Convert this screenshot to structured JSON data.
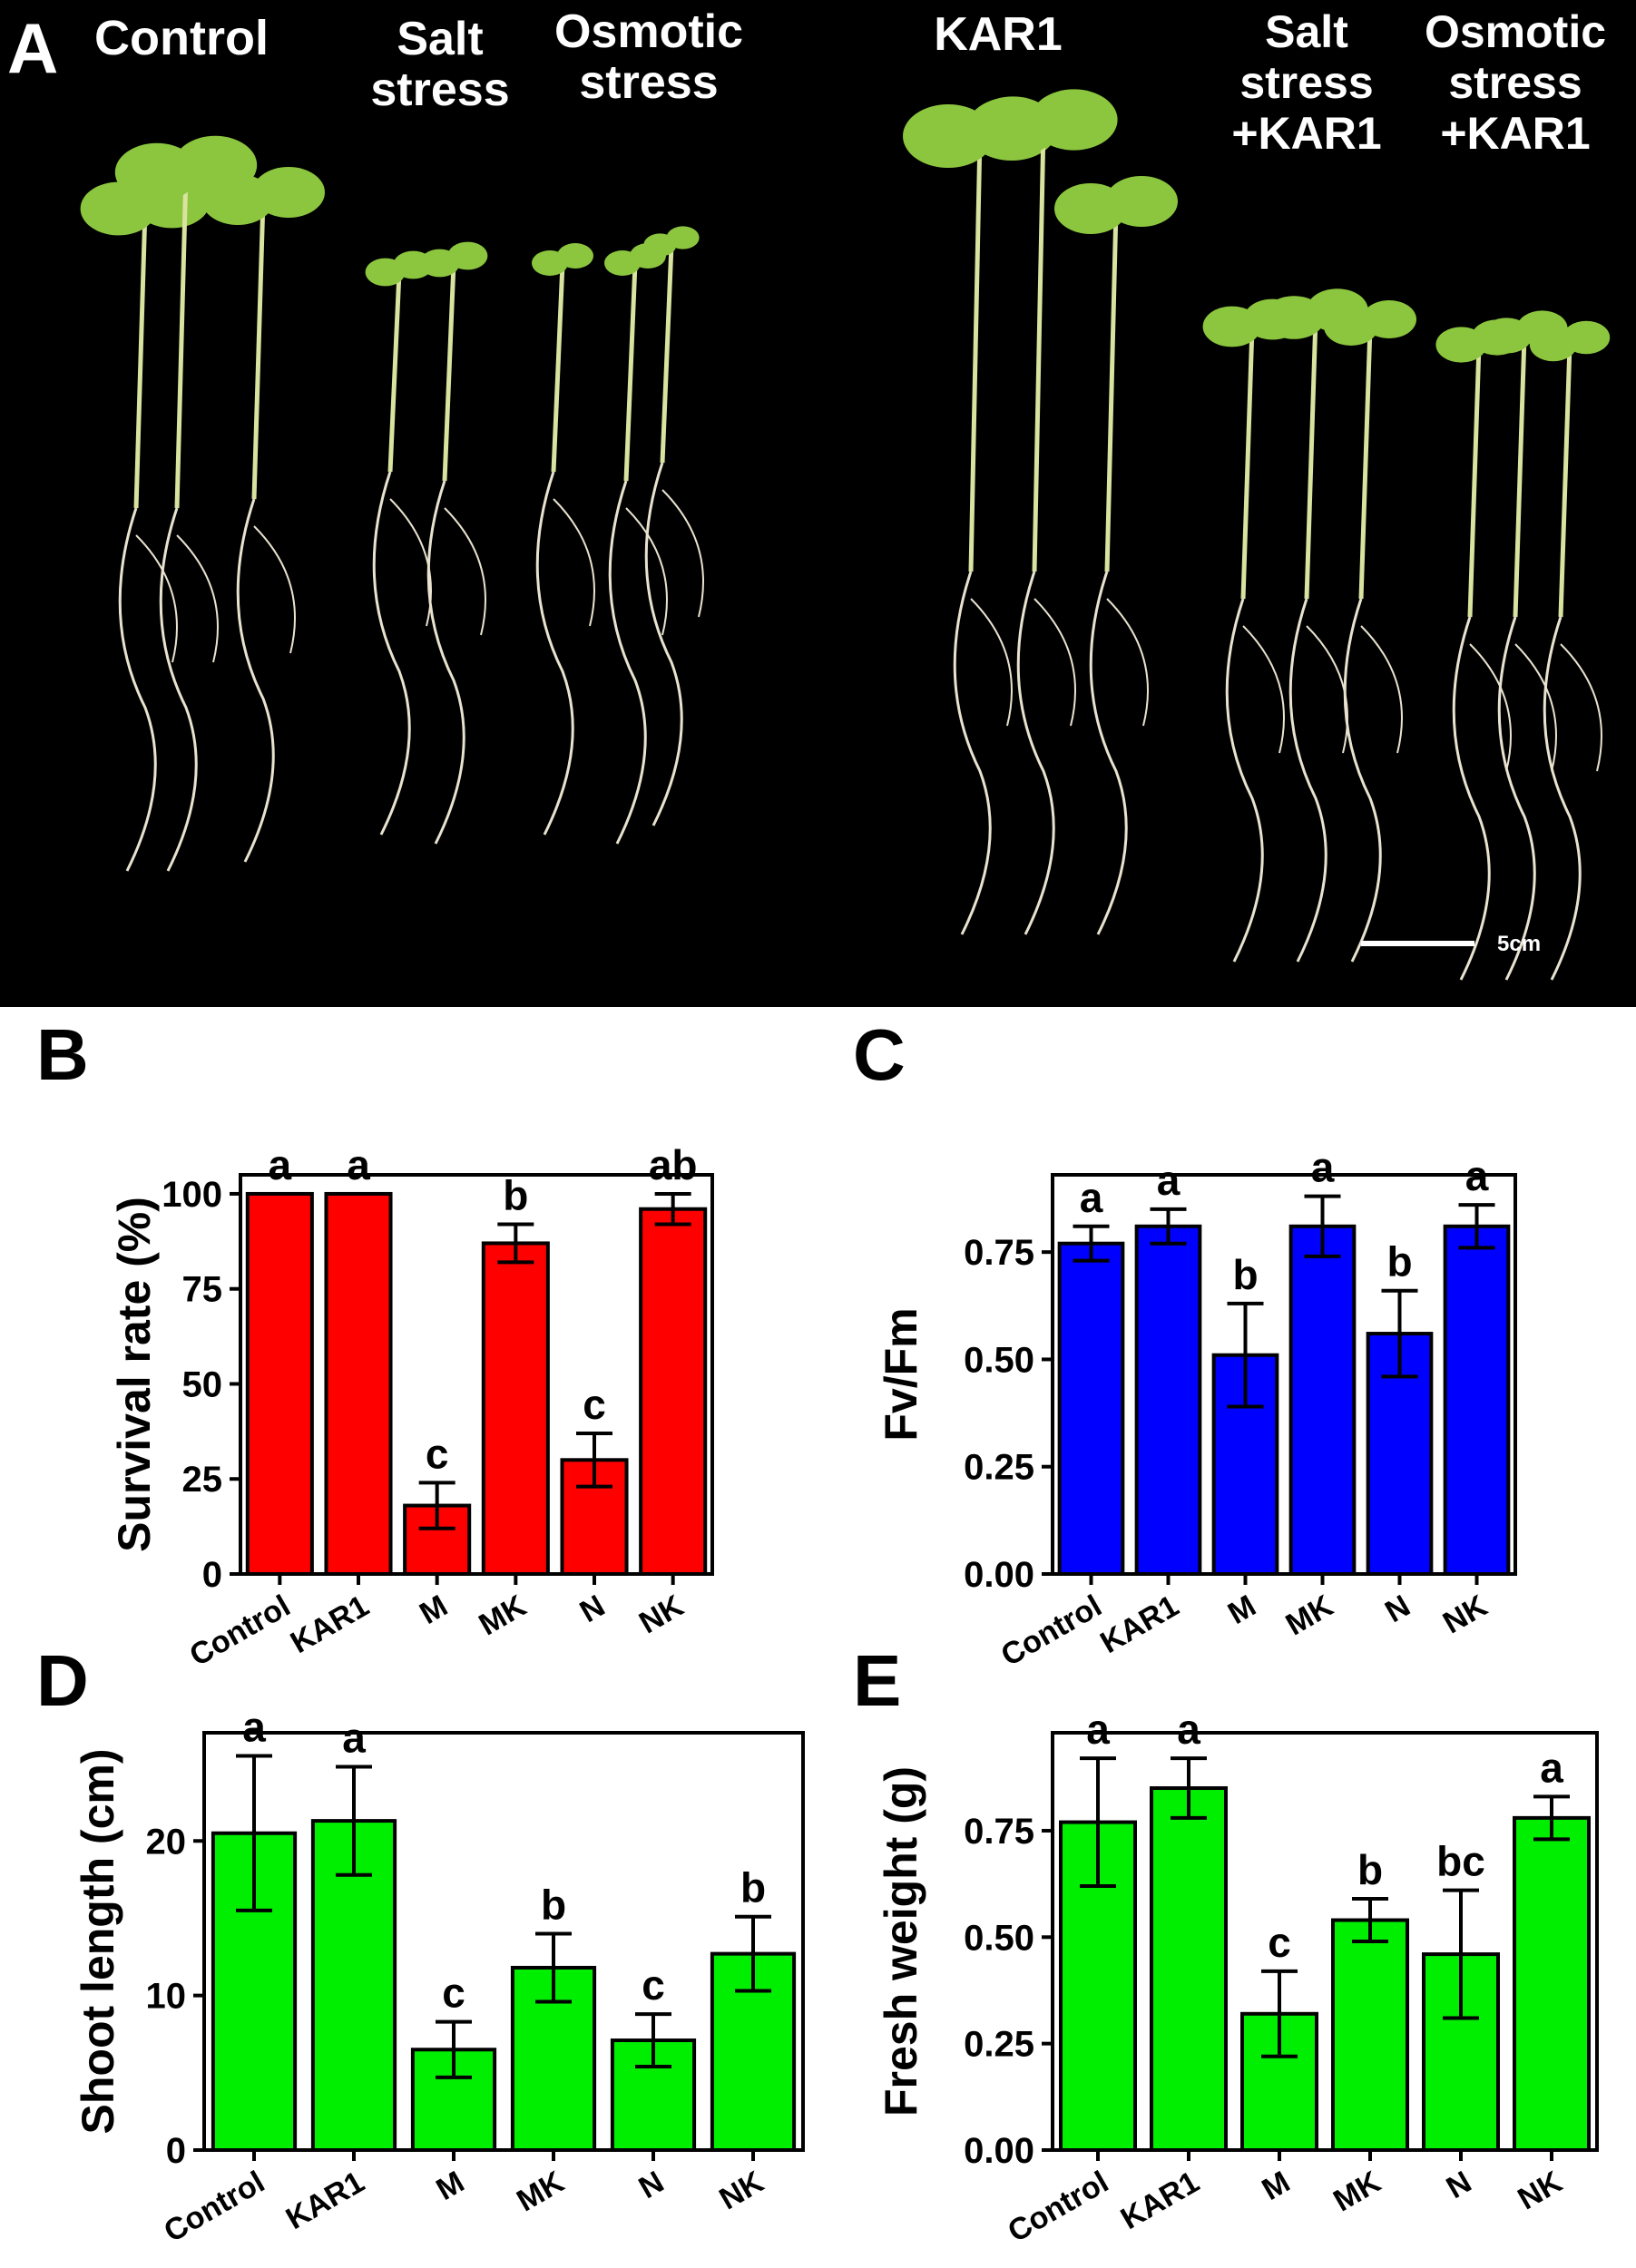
{
  "photo_panel": {
    "label": "A",
    "groups": [
      "Control",
      "Salt stress",
      "Osmotic stress",
      "KAR1",
      "Salt stress +KAR1",
      "Osmotic stress +KAR1"
    ],
    "scale_bar_label": "5cm",
    "colors": {
      "background": "#000000",
      "leaf": "#8cc63f",
      "stem": "#d9e3a0",
      "root": "#e8e2cf"
    }
  },
  "chart_data": [
    {
      "panel": "B",
      "type": "bar",
      "categories": [
        "Control",
        "KAR1",
        "M",
        "MK",
        "N",
        "NK"
      ],
      "values": [
        100,
        100,
        18,
        87,
        30,
        96
      ],
      "errors": [
        0,
        0,
        6,
        5,
        7,
        4
      ],
      "significance": [
        "a",
        "a",
        "c",
        "b",
        "c",
        "ab"
      ],
      "ylabel": "Survival rate (%)",
      "ylim": [
        0,
        105
      ],
      "yticks": [
        0,
        25,
        50,
        75,
        100
      ],
      "ytick_labels": [
        "0",
        "25",
        "50",
        "75",
        "100"
      ],
      "color": "#ff0000"
    },
    {
      "panel": "C",
      "type": "bar",
      "categories": [
        "Control",
        "KAR1",
        "M",
        "MK",
        "N",
        "NK"
      ],
      "values": [
        0.77,
        0.81,
        0.51,
        0.81,
        0.56,
        0.81
      ],
      "errors": [
        0.04,
        0.04,
        0.12,
        0.07,
        0.1,
        0.05
      ],
      "significance": [
        "a",
        "a",
        "b",
        "a",
        "b",
        "a"
      ],
      "ylabel": "Fv/Fm",
      "ylim": [
        0,
        0.93
      ],
      "yticks": [
        0,
        0.25,
        0.5,
        0.75
      ],
      "ytick_labels": [
        "0.00",
        "0.25",
        "0.50",
        "0.75"
      ],
      "color": "#0000ff"
    },
    {
      "panel": "D",
      "type": "bar",
      "categories": [
        "Control",
        "KAR1",
        "M",
        "MK",
        "N",
        "NK"
      ],
      "values": [
        20.5,
        21.3,
        6.5,
        11.8,
        7.1,
        12.7
      ],
      "errors": [
        5,
        3.5,
        1.8,
        2.2,
        1.7,
        2.4
      ],
      "significance": [
        "a",
        "a",
        "c",
        "b",
        "c",
        "b"
      ],
      "ylabel": "Shoot length (cm)",
      "ylim": [
        0,
        27
      ],
      "yticks": [
        0,
        10,
        20
      ],
      "ytick_labels": [
        "0",
        "10",
        "20"
      ],
      "color": "#00ee00"
    },
    {
      "panel": "E",
      "type": "bar",
      "categories": [
        "Control",
        "KAR1",
        "M",
        "MK",
        "N",
        "NK"
      ],
      "values": [
        0.77,
        0.85,
        0.32,
        0.54,
        0.46,
        0.78
      ],
      "errors": [
        0.15,
        0.07,
        0.1,
        0.05,
        0.15,
        0.05
      ],
      "significance": [
        "a",
        "a",
        "c",
        "b",
        "bc",
        "a"
      ],
      "ylabel": "Fresh weight (g)",
      "ylim": [
        0,
        0.98
      ],
      "yticks": [
        0,
        0.25,
        0.5,
        0.75
      ],
      "ytick_labels": [
        "0.00",
        "0.25",
        "0.50",
        "0.75"
      ],
      "color": "#00ee00"
    }
  ]
}
